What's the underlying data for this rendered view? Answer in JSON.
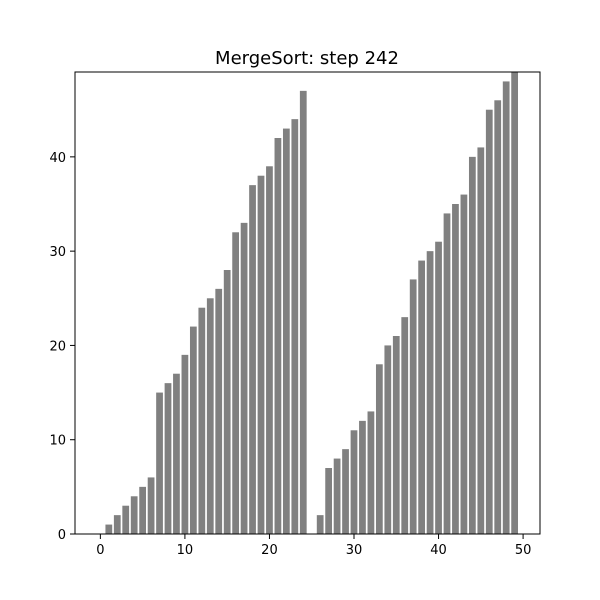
{
  "chart_data": {
    "type": "bar",
    "title": "MergeSort: step 242",
    "xlabel": "",
    "ylabel": "",
    "xlim": [
      -3,
      52
    ],
    "ylim": [
      0,
      49
    ],
    "x_ticks": [
      0,
      10,
      20,
      30,
      40,
      50
    ],
    "y_ticks": [
      0,
      10,
      20,
      30,
      40
    ],
    "grid": false,
    "bar_color": "#808080",
    "x": [
      0,
      1,
      2,
      3,
      4,
      5,
      6,
      7,
      8,
      9,
      10,
      11,
      12,
      13,
      14,
      15,
      16,
      17,
      18,
      19,
      20,
      21,
      22,
      23,
      24,
      25,
      26,
      27,
      28,
      29,
      30,
      31,
      32,
      33,
      34,
      35,
      36,
      37,
      38,
      39,
      40,
      41,
      42,
      43,
      44,
      45,
      46,
      47,
      48,
      49
    ],
    "values": [
      0,
      1,
      2,
      3,
      4,
      5,
      6,
      15,
      16,
      17,
      19,
      22,
      24,
      25,
      26,
      28,
      32,
      33,
      37,
      38,
      39,
      42,
      43,
      44,
      47,
      0,
      2,
      7,
      8,
      9,
      11,
      12,
      13,
      18,
      20,
      21,
      23,
      27,
      29,
      30,
      31,
      34,
      35,
      36,
      40,
      41,
      45,
      46,
      48,
      49
    ]
  }
}
